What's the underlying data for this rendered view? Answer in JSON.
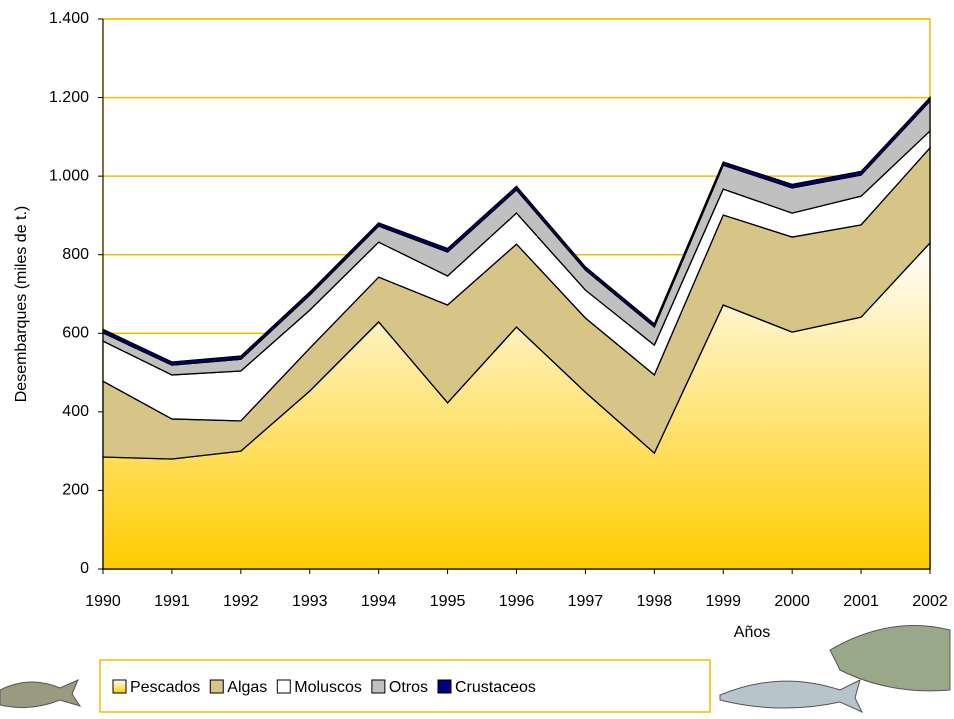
{
  "chart_data": {
    "type": "stacked-area",
    "y_label": "Desembarques (miles de t.)",
    "x_label": "Años",
    "categories": [
      "1990",
      "1991",
      "1992",
      "1993",
      "1994",
      "1995",
      "1996",
      "1997",
      "1998",
      "1999",
      "2000",
      "2001",
      "2002"
    ],
    "series": [
      {
        "name": "Pescados",
        "color": "#ffcc00",
        "values": [
          285,
          280,
          300,
          453,
          629,
          423,
          616,
          450,
          295,
          672,
          603,
          641,
          830
        ]
      },
      {
        "name": "Algas",
        "color": "#d6c586",
        "values": [
          193,
          102,
          77,
          109,
          114,
          249,
          211,
          189,
          199,
          229,
          242,
          235,
          242
        ]
      },
      {
        "name": "Moluscos",
        "color": "#ffffff",
        "values": [
          102,
          112,
          127,
          97,
          89,
          74,
          79,
          71,
          76,
          66,
          61,
          73,
          43
        ]
      },
      {
        "name": "Otros",
        "color": "#c0c0c0",
        "values": [
          21,
          25,
          30,
          38,
          41,
          61,
          59,
          51,
          46,
          61,
          64,
          54,
          76
        ]
      },
      {
        "name": "Crustaceos",
        "color": "#000080",
        "values": [
          9,
          8,
          8,
          8,
          8,
          9,
          9,
          8,
          8,
          8,
          9,
          9,
          9
        ]
      }
    ],
    "ylim": [
      0,
      1400
    ],
    "yticks": [
      0,
      200,
      400,
      600,
      800,
      {
        "value": 1000,
        "label": "1.000"
      },
      {
        "value": 1200,
        "label": "1.200"
      },
      {
        "value": 1400,
        "label": "1.400"
      }
    ],
    "grid": true,
    "grid_color": "#f0c000"
  }
}
